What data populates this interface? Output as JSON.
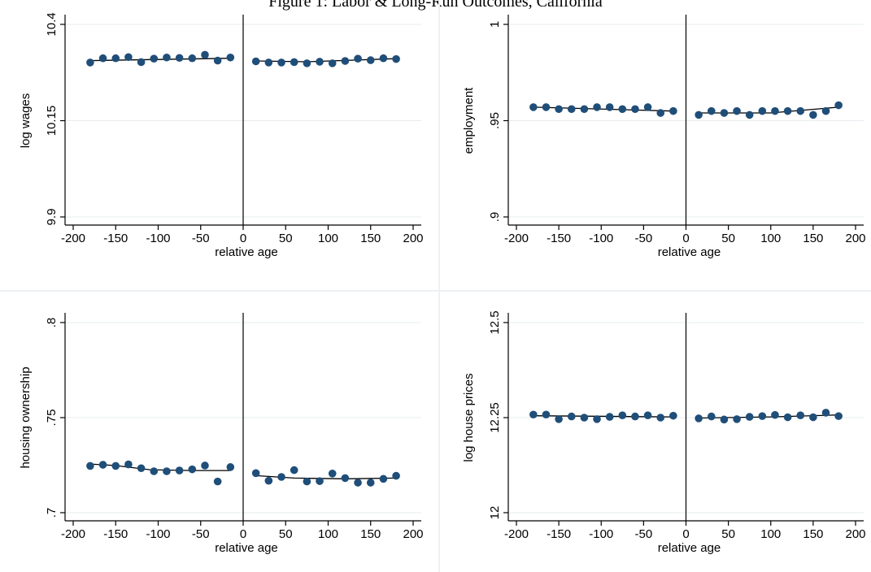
{
  "figure": {
    "title": "Figure 1: Labor & Long-Run Outcomes, California",
    "colors": {
      "marker": "#1f4e79",
      "fit_line": "#000000",
      "grid": "#e6ecef",
      "panel_divider": "#eef1f3"
    }
  },
  "chart_data": [
    {
      "type": "scatter",
      "title": "",
      "xlabel": "relative age",
      "ylabel": "log wages",
      "xlim": [
        -200,
        200
      ],
      "ylim": [
        9.9,
        10.4
      ],
      "xticks": [
        "-200",
        "-150",
        "-100",
        "-50",
        "0",
        "50",
        "100",
        "150",
        "200"
      ],
      "yticks": [
        "9.9",
        "10.15",
        "10.4"
      ],
      "grid": true,
      "cutoff": 0,
      "points": [
        [
          -180,
          10.301
        ],
        [
          -165,
          10.312
        ],
        [
          -150,
          10.312
        ],
        [
          -135,
          10.315
        ],
        [
          -120,
          10.302
        ],
        [
          -105,
          10.311
        ],
        [
          -90,
          10.314
        ],
        [
          -75,
          10.313
        ],
        [
          -60,
          10.312
        ],
        [
          -45,
          10.321
        ],
        [
          -30,
          10.306
        ],
        [
          -15,
          10.314
        ],
        [
          15,
          10.304
        ],
        [
          30,
          10.301
        ],
        [
          45,
          10.301
        ],
        [
          60,
          10.302
        ],
        [
          75,
          10.299
        ],
        [
          90,
          10.303
        ],
        [
          105,
          10.299
        ],
        [
          120,
          10.305
        ],
        [
          135,
          10.311
        ],
        [
          150,
          10.307
        ],
        [
          165,
          10.312
        ],
        [
          180,
          10.31
        ]
      ],
      "fit_left": [
        [
          -180,
          10.306
        ],
        [
          -15,
          10.312
        ]
      ],
      "fit_right": [
        [
          15,
          10.305
        ],
        [
          75,
          10.303
        ],
        [
          180,
          10.311
        ]
      ]
    },
    {
      "type": "scatter",
      "title": "",
      "xlabel": "relative age",
      "ylabel": "employment",
      "xlim": [
        -200,
        200
      ],
      "ylim": [
        0.9,
        1.0
      ],
      "xticks": [
        "-200",
        "-150",
        "-100",
        "-50",
        "0",
        "50",
        "100",
        "150",
        "200"
      ],
      "yticks": [
        ".9",
        ".95",
        "1"
      ],
      "grid": true,
      "cutoff": 0,
      "points": [
        [
          -180,
          0.957
        ],
        [
          -165,
          0.957
        ],
        [
          -150,
          0.956
        ],
        [
          -135,
          0.956
        ],
        [
          -120,
          0.956
        ],
        [
          -105,
          0.957
        ],
        [
          -90,
          0.957
        ],
        [
          -75,
          0.956
        ],
        [
          -60,
          0.956
        ],
        [
          -45,
          0.957
        ],
        [
          -30,
          0.954
        ],
        [
          -15,
          0.955
        ],
        [
          15,
          0.953
        ],
        [
          30,
          0.955
        ],
        [
          45,
          0.954
        ],
        [
          60,
          0.955
        ],
        [
          75,
          0.953
        ],
        [
          90,
          0.955
        ],
        [
          105,
          0.955
        ],
        [
          120,
          0.955
        ],
        [
          135,
          0.955
        ],
        [
          150,
          0.953
        ],
        [
          165,
          0.955
        ],
        [
          180,
          0.958
        ]
      ],
      "fit_left": [
        [
          -180,
          0.957
        ],
        [
          -15,
          0.955
        ]
      ],
      "fit_right": [
        [
          15,
          0.954
        ],
        [
          100,
          0.954
        ],
        [
          180,
          0.957
        ]
      ]
    },
    {
      "type": "scatter",
      "title": "",
      "xlabel": "relative age",
      "ylabel": "housing ownership",
      "xlim": [
        -200,
        200
      ],
      "ylim": [
        0.7,
        0.8
      ],
      "xticks": [
        "-200",
        "-150",
        "-100",
        "-50",
        "0",
        "50",
        "100",
        "150",
        "200"
      ],
      "yticks": [
        ".7",
        ".75",
        ".8"
      ],
      "grid": true,
      "cutoff": 0,
      "points": [
        [
          -180,
          0.7246
        ],
        [
          -165,
          0.7252
        ],
        [
          -150,
          0.7246
        ],
        [
          -135,
          0.7254
        ],
        [
          -120,
          0.7234
        ],
        [
          -105,
          0.7218
        ],
        [
          -90,
          0.7218
        ],
        [
          -75,
          0.7222
        ],
        [
          -60,
          0.7228
        ],
        [
          -45,
          0.7248
        ],
        [
          -30,
          0.7164
        ],
        [
          -15,
          0.724
        ],
        [
          15,
          0.7208
        ],
        [
          30,
          0.7168
        ],
        [
          45,
          0.7188
        ],
        [
          60,
          0.7224
        ],
        [
          75,
          0.7164
        ],
        [
          90,
          0.7166
        ],
        [
          105,
          0.7206
        ],
        [
          120,
          0.7182
        ],
        [
          135,
          0.7158
        ],
        [
          150,
          0.7158
        ],
        [
          165,
          0.7178
        ],
        [
          180,
          0.7194
        ]
      ],
      "fit_left": [
        [
          -180,
          0.7256
        ],
        [
          -150,
          0.7248
        ],
        [
          -110,
          0.7226
        ],
        [
          -60,
          0.7222
        ],
        [
          -15,
          0.7222
        ]
      ],
      "fit_right": [
        [
          15,
          0.7195
        ],
        [
          60,
          0.7182
        ],
        [
          120,
          0.7178
        ],
        [
          180,
          0.7182
        ]
      ]
    },
    {
      "type": "scatter",
      "title": "",
      "xlabel": "relative age",
      "ylabel": "log house prices",
      "xlim": [
        -200,
        200
      ],
      "ylim": [
        12.0,
        12.5
      ],
      "xticks": [
        "-200",
        "-150",
        "-100",
        "-50",
        "0",
        "50",
        "100",
        "150",
        "200"
      ],
      "yticks": [
        "12",
        "12.25",
        "12.5"
      ],
      "grid": true,
      "cutoff": 0,
      "points": [
        [
          -180,
          12.258
        ],
        [
          -165,
          12.258
        ],
        [
          -150,
          12.246
        ],
        [
          -135,
          12.253
        ],
        [
          -120,
          12.25
        ],
        [
          -105,
          12.246
        ],
        [
          -90,
          12.252
        ],
        [
          -75,
          12.256
        ],
        [
          -60,
          12.253
        ],
        [
          -45,
          12.256
        ],
        [
          -30,
          12.25
        ],
        [
          -15,
          12.255
        ],
        [
          15,
          12.248
        ],
        [
          30,
          12.253
        ],
        [
          45,
          12.245
        ],
        [
          60,
          12.246
        ],
        [
          75,
          12.252
        ],
        [
          90,
          12.254
        ],
        [
          105,
          12.257
        ],
        [
          120,
          12.251
        ],
        [
          135,
          12.256
        ],
        [
          150,
          12.251
        ],
        [
          165,
          12.263
        ],
        [
          180,
          12.254
        ]
      ],
      "fit_left": [
        [
          -180,
          12.255
        ],
        [
          -15,
          12.252
        ]
      ],
      "fit_right": [
        [
          15,
          12.249
        ],
        [
          100,
          12.252
        ],
        [
          180,
          12.257
        ]
      ]
    }
  ]
}
